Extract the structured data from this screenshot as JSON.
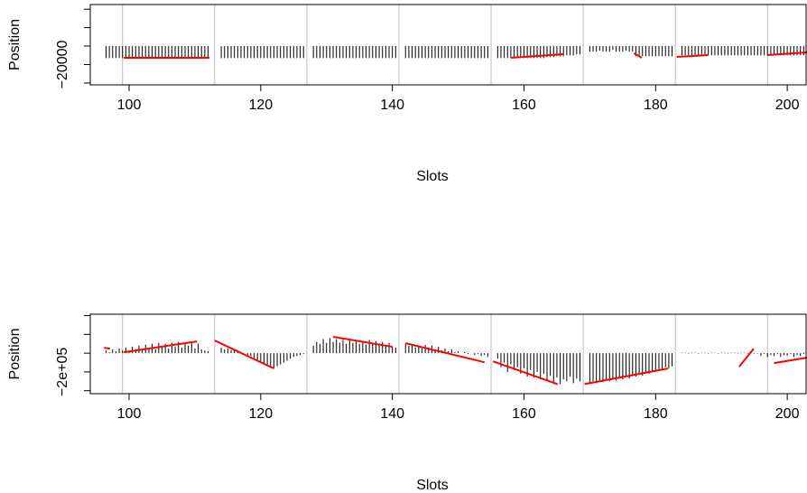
{
  "chart_data": [
    {
      "type": "spike",
      "xlabel": "Slots",
      "ylabel": "Position",
      "xlim": [
        94.1,
        203
      ],
      "xticks": [
        100,
        120,
        140,
        160,
        180,
        200
      ],
      "ylim": [
        -42000,
        45000
      ],
      "yticks": [
        {
          "value": -40000,
          "label": null
        },
        {
          "value": -20000,
          "label": "−20000"
        },
        {
          "value": 0,
          "label": null
        },
        {
          "value": 20000,
          "label": null
        },
        {
          "value": 40000,
          "label": null
        }
      ],
      "vlines": [
        99,
        113,
        127,
        141,
        155,
        169,
        183,
        197
      ],
      "vline_color": "#bebebe",
      "color": "#000000",
      "x": [
        96.5,
        97,
        97.5,
        98,
        98.5,
        99,
        99.5,
        100,
        100.5,
        101,
        101.5,
        102,
        102.5,
        103,
        103.5,
        104,
        104.5,
        105,
        105.5,
        106,
        106.5,
        107,
        107.5,
        108,
        108.5,
        109,
        109.5,
        110,
        110.5,
        111,
        111.5,
        112,
        114,
        114.5,
        115,
        115.5,
        116,
        116.5,
        117,
        117.5,
        118,
        118.5,
        119,
        119.5,
        120,
        120.5,
        121,
        121.5,
        122,
        122.5,
        123,
        123.5,
        124,
        124.5,
        125,
        125.5,
        126,
        126.5,
        128,
        128.5,
        129,
        129.5,
        130,
        130.5,
        131,
        131.5,
        132,
        132.5,
        133,
        133.5,
        134,
        134.5,
        135,
        135.5,
        136,
        136.5,
        137,
        137.5,
        138,
        138.5,
        139,
        139.5,
        140,
        140.5,
        142,
        142.5,
        143,
        143.5,
        144,
        144.5,
        145,
        145.5,
        146,
        146.5,
        147,
        147.5,
        148,
        148.5,
        149,
        149.5,
        150,
        150.5,
        151,
        151.5,
        152,
        152.5,
        153,
        153.5,
        154,
        154.5,
        156,
        156.5,
        157,
        157.5,
        158,
        158.5,
        159,
        159.5,
        160,
        160.5,
        161,
        161.5,
        162,
        162.5,
        163,
        163.5,
        164,
        164.5,
        165,
        165.5,
        166,
        166.5,
        167,
        167.5,
        168,
        168.5,
        170,
        170.5,
        171,
        171.5,
        172,
        172.5,
        173,
        173.5,
        174,
        174.5,
        175,
        175.5,
        176,
        176.5,
        177,
        177.5,
        178,
        178.5,
        179,
        179.5,
        180,
        180.5,
        181,
        181.5,
        182,
        182.5,
        184,
        184.5,
        185,
        185.5,
        186,
        186.5,
        187,
        187.5,
        188,
        188.5,
        189,
        189.5,
        190,
        190.5,
        191,
        191.5,
        192,
        192.5,
        193,
        193.5,
        194,
        194.5,
        195,
        195.5,
        196,
        196.5,
        197,
        197.5,
        198,
        198.5,
        199,
        199.5,
        200,
        200.5,
        201,
        201.5,
        202,
        202.5
      ],
      "values": [
        -13000,
        -13000,
        -13000,
        -13000,
        -13000,
        -13000,
        -13000,
        -13000,
        -13000,
        -13000,
        -13000,
        -13000,
        -13000,
        -13000,
        -13000,
        -13000,
        -13000,
        -13000,
        -13000,
        -13000,
        -13000,
        -13000,
        -13000,
        -13000,
        -13000,
        -13000,
        -13000,
        -13000,
        -13000,
        -13000,
        -13000,
        -13000,
        -13000,
        -13000,
        -13000,
        -13000,
        -13000,
        -13000,
        -13000,
        -13000,
        -13000,
        -13000,
        -13000,
        -13000,
        -13000,
        -13000,
        -13000,
        -13000,
        -13000,
        -13000,
        -13000,
        -13000,
        -13000,
        -13000,
        -13000,
        -13000,
        -13000,
        -13000,
        -13000,
        -13000,
        -13000,
        -13000,
        -13000,
        -13000,
        -13000,
        -13000,
        -13000,
        -13000,
        -13000,
        -13000,
        -13000,
        -13000,
        -13000,
        -13000,
        -13000,
        -13000,
        -13000,
        -13000,
        -13000,
        -13000,
        -13000,
        -13000,
        -13000,
        -13000,
        -13000,
        -13000,
        -13000,
        -13000,
        -13000,
        -13000,
        -13000,
        -13000,
        -13000,
        -13000,
        -13000,
        -13000,
        -13000,
        -13000,
        -13000,
        -13000,
        -13000,
        -13000,
        -13000,
        -13000,
        -13000,
        -13000,
        -13000,
        -13000,
        -13000,
        -13000,
        -13000,
        -13000,
        -13000,
        -13000,
        -13000,
        -13000,
        -13000,
        -13000,
        -13000,
        -13000,
        -13000,
        -13000,
        -13000,
        -13000,
        -13000,
        -12000,
        -12000,
        -12000,
        -11000,
        -11000,
        -11000,
        -10000,
        -10000,
        -10000,
        -9000,
        -9000,
        -6000,
        -6000,
        -6000,
        -5000,
        -6000,
        -6000,
        -6000,
        -4000,
        -6000,
        -6000,
        -6000,
        -5000,
        -6000,
        -6000,
        -11000,
        -11000,
        -11000,
        -11000,
        -11000,
        -11000,
        -11000,
        -11000,
        -11000,
        -11000,
        -11000,
        -11000,
        -10000,
        -10000,
        -10000,
        -10000,
        -10000,
        -10000,
        -10000,
        -10000,
        -10000,
        -10000,
        -10000,
        -10000,
        -10000,
        -10000,
        -10000,
        -10000,
        -10000,
        -10000,
        -10000,
        -10000,
        -10000,
        -10000,
        -10000,
        -10000,
        -10000,
        -10000,
        -10000,
        -10000,
        -10000,
        -10000,
        -10000,
        -10000,
        -10000,
        -10000,
        -10000,
        -10000,
        -10000,
        -10000
      ],
      "line_color": "#ff0000",
      "lines": [
        {
          "x": [
            99.2,
            112.2
          ],
          "values": [
            -12700,
            -12700
          ]
        },
        {
          "x": [
            158,
            166
          ],
          "values": [
            -12700,
            -8800
          ]
        },
        {
          "x": [
            176.7,
            177.9
          ],
          "values": [
            -7800,
            -12700
          ]
        },
        {
          "x": [
            183.2,
            188
          ],
          "values": [
            -11700,
            -9800
          ]
        },
        {
          "x": [
            197,
            203
          ],
          "values": [
            -9800,
            -6800
          ]
        }
      ]
    },
    {
      "type": "spike",
      "xlabel": "Slots",
      "ylabel": "Position",
      "xlim": [
        94.1,
        203
      ],
      "xticks": [
        100,
        120,
        140,
        160,
        180,
        200
      ],
      "ylim": [
        -432000,
        415000
      ],
      "yticks": [
        {
          "value": -400000,
          "label": null
        },
        {
          "value": -200000,
          "label": "−2e+05"
        },
        {
          "value": 0,
          "label": null
        },
        {
          "value": 200000,
          "label": null
        },
        {
          "value": 400000,
          "label": null
        }
      ],
      "vlines": [
        99,
        113,
        127,
        141,
        155,
        169,
        183,
        197
      ],
      "vline_color": "#bebebe",
      "color": "#000000",
      "x": [
        96.5,
        97,
        97.5,
        98,
        98.5,
        99,
        99.5,
        100,
        100.5,
        101,
        101.5,
        102,
        102.5,
        103,
        103.5,
        104,
        104.5,
        105,
        105.5,
        106,
        106.5,
        107,
        107.5,
        108,
        108.5,
        109,
        109.5,
        110,
        110.5,
        111,
        111.5,
        112,
        114,
        114.5,
        115,
        115.5,
        116,
        116.5,
        117,
        117.5,
        118,
        118.5,
        119,
        119.5,
        120,
        120.5,
        121,
        121.5,
        122,
        122.5,
        123,
        123.5,
        124,
        124.5,
        125,
        125.5,
        126,
        126.5,
        128,
        128.5,
        129,
        129.5,
        130,
        130.5,
        131,
        131.5,
        132,
        132.5,
        133,
        133.5,
        134,
        134.5,
        135,
        135.5,
        136,
        136.5,
        137,
        137.5,
        138,
        138.5,
        139,
        139.5,
        140,
        140.5,
        142,
        142.5,
        143,
        143.5,
        144,
        144.5,
        145,
        145.5,
        146,
        146.5,
        147,
        147.5,
        148,
        148.5,
        149,
        149.5,
        150,
        150.5,
        151,
        151.5,
        152,
        152.5,
        153,
        153.5,
        154,
        154.5,
        156,
        156.5,
        157,
        157.5,
        158,
        158.5,
        159,
        159.5,
        160,
        160.5,
        161,
        161.5,
        162,
        162.5,
        163,
        163.5,
        164,
        164.5,
        165,
        165.5,
        166,
        166.5,
        167,
        167.5,
        168,
        168.5,
        170,
        170.5,
        171,
        171.5,
        172,
        172.5,
        173,
        173.5,
        174,
        174.5,
        175,
        175.5,
        176,
        176.5,
        177,
        177.5,
        178,
        178.5,
        179,
        179.5,
        180,
        180.5,
        181,
        181.5,
        182,
        182.5,
        184,
        184.5,
        185,
        185.5,
        186,
        186.5,
        187,
        187.5,
        188,
        188.5,
        189,
        189.5,
        190,
        190.5,
        191,
        191.5,
        192,
        192.5,
        193,
        193.5,
        194,
        194.5,
        195,
        195.5,
        196,
        196.5,
        197,
        197.5,
        198,
        198.5,
        199,
        199.5,
        200,
        200.5,
        201,
        201.5,
        202,
        202.5
      ],
      "values": [
        30000,
        10000,
        40000,
        20000,
        50000,
        30000,
        60000,
        20000,
        70000,
        40000,
        80000,
        30000,
        90000,
        50000,
        100000,
        40000,
        110000,
        60000,
        100000,
        50000,
        110000,
        70000,
        120000,
        60000,
        110000,
        80000,
        120000,
        50000,
        100000,
        40000,
        30000,
        20000,
        60000,
        40000,
        50000,
        30000,
        30000,
        20000,
        10000,
        0,
        -20000,
        -30000,
        -50000,
        -70000,
        -90000,
        -110000,
        -130000,
        -150000,
        -160000,
        -140000,
        -120000,
        -100000,
        -80000,
        -60000,
        -40000,
        -30000,
        -20000,
        -10000,
        80000,
        120000,
        100000,
        150000,
        110000,
        160000,
        120000,
        150000,
        110000,
        140000,
        100000,
        150000,
        110000,
        140000,
        100000,
        130000,
        90000,
        140000,
        100000,
        130000,
        90000,
        120000,
        80000,
        110000,
        70000,
        60000,
        100000,
        80000,
        90000,
        60000,
        80000,
        50000,
        90000,
        60000,
        80000,
        40000,
        70000,
        30000,
        50000,
        20000,
        40000,
        10000,
        20000,
        0,
        10000,
        -10000,
        0,
        -20000,
        -10000,
        -30000,
        -20000,
        -40000,
        -60000,
        -150000,
        -100000,
        -200000,
        -120000,
        -180000,
        -150000,
        -220000,
        -160000,
        -250000,
        -180000,
        -260000,
        -200000,
        -280000,
        -220000,
        -300000,
        -240000,
        -320000,
        -260000,
        -330000,
        -280000,
        -300000,
        -250000,
        -320000,
        -270000,
        -300000,
        -330000,
        -300000,
        -320000,
        -290000,
        -310000,
        -280000,
        -300000,
        -270000,
        -290000,
        -260000,
        -280000,
        -250000,
        -270000,
        -240000,
        -250000,
        -220000,
        -240000,
        -200000,
        -220000,
        -190000,
        -200000,
        -170000,
        -180000,
        -150000,
        -160000,
        -140000,
        5000,
        5000,
        -5000,
        5000,
        5000,
        -5000,
        5000,
        5000,
        -5000,
        5000,
        5000,
        -5000,
        5000,
        5000,
        -5000,
        5000,
        5000,
        -5000,
        5000,
        5000,
        -5000,
        5000,
        -5000,
        -5000,
        -30000,
        -10000,
        -40000,
        -20000,
        -30000,
        -10000,
        -40000,
        -20000,
        -30000,
        -10000,
        -40000,
        -20000,
        -30000,
        -10000
      ],
      "line_color": "#ff0000",
      "lines": [
        {
          "x": [
            96.2,
            97.1
          ],
          "values": [
            58000,
            48000
          ]
        },
        {
          "x": [
            99.2,
            110.3
          ],
          "values": [
            10000,
            125000
          ]
        },
        {
          "x": [
            113,
            122
          ],
          "values": [
            135000,
            -164000
          ]
        },
        {
          "x": [
            131,
            140
          ],
          "values": [
            174000,
            68000
          ]
        },
        {
          "x": [
            142,
            154
          ],
          "values": [
            106000,
            -97000
          ]
        },
        {
          "x": [
            155.3,
            165.1
          ],
          "values": [
            -87000,
            -330000
          ]
        },
        {
          "x": [
            169.2,
            181.9
          ],
          "values": [
            -330000,
            -164000
          ]
        },
        {
          "x": [
            192.7,
            194.9
          ],
          "values": [
            -145000,
            48000
          ]
        },
        {
          "x": [
            198,
            203
          ],
          "values": [
            -106000,
            -48000
          ]
        }
      ]
    }
  ]
}
